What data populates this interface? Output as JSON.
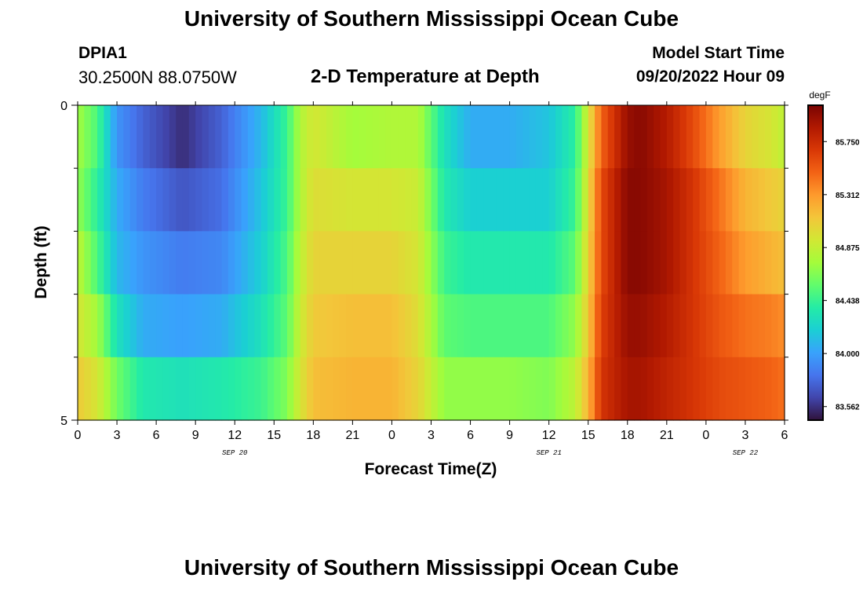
{
  "page": {
    "title_top": "University of Southern Mississippi Ocean Cube",
    "title_bottom": "University of Southern Mississippi Ocean Cube"
  },
  "station": {
    "id": "DPIA1",
    "coords": "30.2500N  88.0750W"
  },
  "model": {
    "start_label": "Model Start Time",
    "start_value": "09/20/2022 Hour 09"
  },
  "chart_data": {
    "type": "heatmap",
    "title": "2-D Temperature at Depth",
    "xlabel": "Forecast Time(Z)",
    "ylabel": "Depth (ft)",
    "x_tick_labels": [
      "0",
      "3",
      "6",
      "9",
      "12",
      "15",
      "18",
      "21",
      "0",
      "3",
      "6",
      "9",
      "12",
      "15",
      "18",
      "21",
      "0",
      "3",
      "6"
    ],
    "date_labels": [
      {
        "text": "SEP 20",
        "at_hour": 12
      },
      {
        "text": "SEP 21",
        "at_hour": 36
      },
      {
        "text": "SEP 22",
        "at_hour": 51
      }
    ],
    "x_range_hours": [
      0,
      54
    ],
    "y_tick_labels": [
      "0",
      "5"
    ],
    "ylim": [
      0,
      5
    ],
    "depth_rows": 5,
    "colorbar": {
      "unit": "degF",
      "min": 83.45,
      "max": 86.05,
      "tick_values": [
        85.75,
        85.312,
        84.875,
        84.438,
        84.0,
        83.562
      ],
      "tick_labels": [
        "85.750",
        "85.312",
        "84.875",
        "84.438",
        "84.000",
        "83.562"
      ],
      "colors": [
        "#30123b",
        "#4145ab",
        "#4675ed",
        "#39a2fc",
        "#1bcfd4",
        "#24eca6",
        "#61fc6c",
        "#a4fc3b",
        "#d1e834",
        "#f3c63a",
        "#fe9b2d",
        "#f36315",
        "#d93806",
        "#b11901",
        "#7a0403"
      ]
    },
    "temperature_keypoints": {
      "hours": [
        0,
        1.5,
        3,
        5,
        8,
        11,
        14,
        16,
        17,
        18,
        21,
        24,
        26,
        28,
        30,
        33,
        36,
        38,
        39,
        40,
        42,
        43,
        45,
        47,
        49,
        51,
        53,
        54
      ],
      "rows": [
        [
          84.75,
          84.5,
          83.95,
          83.75,
          83.55,
          83.75,
          84.1,
          84.45,
          84.8,
          84.95,
          84.75,
          84.8,
          84.8,
          84.3,
          84.05,
          84.05,
          84.15,
          84.4,
          84.95,
          85.5,
          85.95,
          86.0,
          85.85,
          85.6,
          85.3,
          85.05,
          84.95,
          84.85
        ],
        [
          84.7,
          84.4,
          84.05,
          83.85,
          83.7,
          83.8,
          84.15,
          84.45,
          84.8,
          85.0,
          84.95,
          84.95,
          84.9,
          84.35,
          84.2,
          84.2,
          84.2,
          84.45,
          85.0,
          85.6,
          86.0,
          86.0,
          85.9,
          85.7,
          85.45,
          85.2,
          85.1,
          85.05
        ],
        [
          84.85,
          84.5,
          84.1,
          83.95,
          83.85,
          83.9,
          84.2,
          84.5,
          84.85,
          85.05,
          85.05,
          85.05,
          84.95,
          84.45,
          84.35,
          84.35,
          84.35,
          84.55,
          85.05,
          85.6,
          86.0,
          86.0,
          85.9,
          85.7,
          85.5,
          85.3,
          85.2,
          85.15
        ],
        [
          84.95,
          84.75,
          84.3,
          84.05,
          84.0,
          84.05,
          84.3,
          84.55,
          84.9,
          85.1,
          85.15,
          85.15,
          85.0,
          84.55,
          84.5,
          84.5,
          84.5,
          84.7,
          85.1,
          85.65,
          85.95,
          85.95,
          85.85,
          85.7,
          85.55,
          85.45,
          85.4,
          85.35
        ],
        [
          85.1,
          84.95,
          84.6,
          84.35,
          84.3,
          84.35,
          84.45,
          84.65,
          84.95,
          85.15,
          85.2,
          85.2,
          85.05,
          84.7,
          84.7,
          84.7,
          84.65,
          84.85,
          85.2,
          85.7,
          85.9,
          85.9,
          85.8,
          85.7,
          85.6,
          85.55,
          85.5,
          85.45
        ]
      ]
    }
  }
}
